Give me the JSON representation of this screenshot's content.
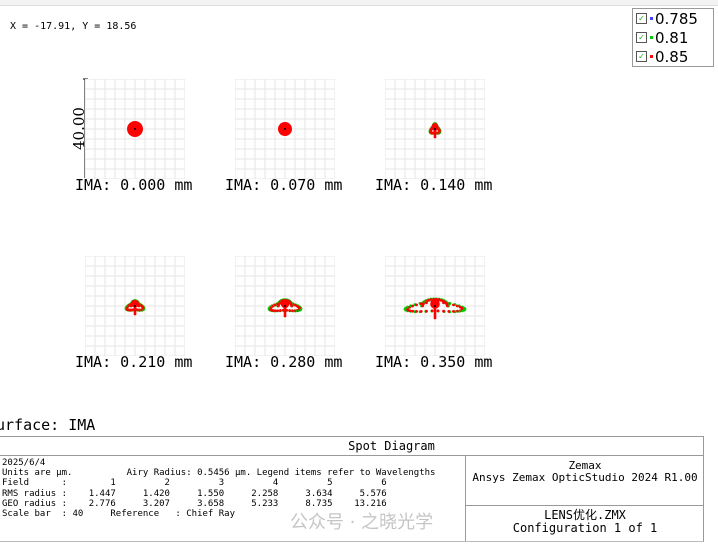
{
  "cursor_readout": "X = -17.91, Y = 18.56",
  "legend": {
    "items": [
      {
        "label": "0.785",
        "color": "#4040ff",
        "checked": true
      },
      {
        "label": "0.81",
        "color": "#00cc00",
        "checked": true
      },
      {
        "label": "0.85",
        "color": "#ff0000",
        "checked": true
      }
    ]
  },
  "scale_label": "40.00",
  "plots": [
    {
      "label": "IMA: 0.000 mm"
    },
    {
      "label": "IMA: 0.070 mm"
    },
    {
      "label": "IMA: 0.140 mm"
    },
    {
      "label": "IMA: 0.210 mm"
    },
    {
      "label": "IMA: 0.280 mm"
    },
    {
      "label": "IMA: 0.350 mm"
    }
  ],
  "surface_label": "urface: IMA",
  "panel": {
    "title": "Spot Diagram",
    "date": "2025/6/4",
    "units_line": "Units are µm.          Airy Radius: 0.5456 µm. Legend items refer to Wavelengths",
    "field_line": "Field      :        1         2         3         4         5         6",
    "rms_line": "RMS radius :    1.447     1.420     1.550     2.258     3.634     5.576",
    "geo_line": "GEO radius :    2.776     3.207     3.658     5.233     8.735    13.216",
    "scale_line": "Scale bar  : 40     Reference   : Chief Ray",
    "company": "Zemax",
    "product": "Ansys Zemax OpticStudio 2024 R1.00",
    "file": "LENS优化.ZMX",
    "config": "Configuration 1 of 1",
    "watermark": "公众号 · 之晓光学"
  }
}
